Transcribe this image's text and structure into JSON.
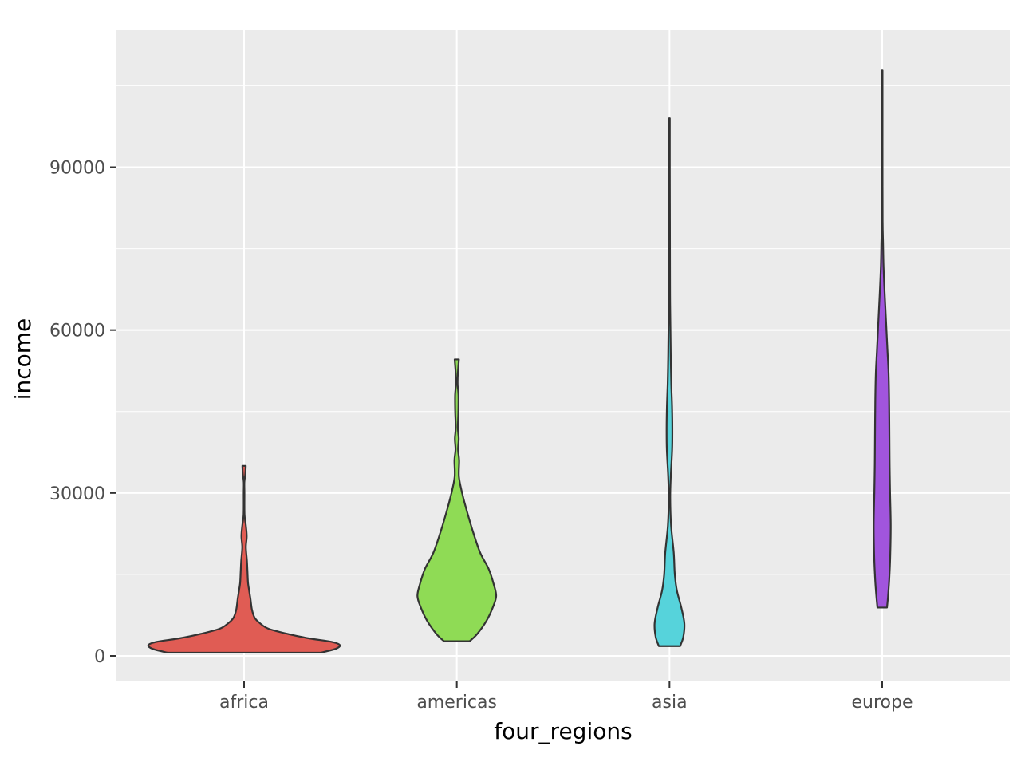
{
  "chart_data": {
    "type": "violin",
    "title": "",
    "xlabel": "four_regions",
    "ylabel": "income",
    "ylim": [
      -4700,
      115200
    ],
    "yticks": [
      0,
      30000,
      60000,
      90000
    ],
    "yticks_labels": [
      "0",
      "30000",
      "60000",
      "90000"
    ],
    "grid": true,
    "legend": "none",
    "categories": [
      "africa",
      "americas",
      "asia",
      "europe"
    ],
    "series": [
      {
        "category": "africa",
        "color": "#E05C54",
        "min": 600,
        "max": 35000,
        "profile": [
          [
            600,
            0.72
          ],
          [
            1300,
            0.86
          ],
          [
            2000,
            0.9
          ],
          [
            2600,
            0.82
          ],
          [
            3200,
            0.62
          ],
          [
            4000,
            0.42
          ],
          [
            5000,
            0.23
          ],
          [
            6000,
            0.15
          ],
          [
            7000,
            0.1
          ],
          [
            8500,
            0.074
          ],
          [
            10500,
            0.06
          ],
          [
            12000,
            0.048
          ],
          [
            13500,
            0.037
          ],
          [
            15500,
            0.032
          ],
          [
            17500,
            0.027
          ],
          [
            20000,
            0.017
          ],
          [
            22000,
            0.025
          ],
          [
            24000,
            0.017
          ],
          [
            26000,
            0.0045
          ],
          [
            30000,
            0.0035
          ],
          [
            32000,
            0.003
          ],
          [
            33500,
            0.012
          ],
          [
            35000,
            0.016
          ]
        ]
      },
      {
        "category": "americas",
        "color": "#8FDB55",
        "min": 2700,
        "max": 54600,
        "profile": [
          [
            2700,
            0.12
          ],
          [
            4000,
            0.19
          ],
          [
            6500,
            0.28
          ],
          [
            9000,
            0.34
          ],
          [
            11000,
            0.37
          ],
          [
            13000,
            0.35
          ],
          [
            16000,
            0.3
          ],
          [
            19000,
            0.22
          ],
          [
            23000,
            0.15
          ],
          [
            27000,
            0.09
          ],
          [
            30000,
            0.05
          ],
          [
            33000,
            0.02
          ],
          [
            36000,
            0.022
          ],
          [
            38000,
            0.012
          ],
          [
            40000,
            0.018
          ],
          [
            42000,
            0.01
          ],
          [
            45000,
            0.015
          ],
          [
            48000,
            0.016
          ],
          [
            50000,
            0.008
          ],
          [
            52000,
            0.01
          ],
          [
            54600,
            0.02
          ]
        ]
      },
      {
        "category": "asia",
        "color": "#56D3DB",
        "min": 1800,
        "max": 99000,
        "profile": [
          [
            1800,
            0.1
          ],
          [
            3500,
            0.13
          ],
          [
            6000,
            0.14
          ],
          [
            9000,
            0.11
          ],
          [
            12000,
            0.07
          ],
          [
            15000,
            0.05
          ],
          [
            19000,
            0.04
          ],
          [
            24000,
            0.015
          ],
          [
            29000,
            0.007
          ],
          [
            33000,
            0.012
          ],
          [
            38000,
            0.025
          ],
          [
            42000,
            0.027
          ],
          [
            46000,
            0.024
          ],
          [
            50000,
            0.017
          ],
          [
            55000,
            0.012
          ],
          [
            60000,
            0.009
          ],
          [
            65000,
            0.006
          ],
          [
            70000,
            0.005
          ],
          [
            80000,
            0.004
          ],
          [
            90000,
            0.003
          ],
          [
            99000,
            0.003
          ]
        ]
      },
      {
        "category": "europe",
        "color": "#A155DD",
        "min": 8900,
        "max": 107800,
        "profile": [
          [
            8900,
            0.045
          ],
          [
            11000,
            0.055
          ],
          [
            14000,
            0.066
          ],
          [
            18000,
            0.075
          ],
          [
            24000,
            0.08
          ],
          [
            30000,
            0.074
          ],
          [
            35000,
            0.07
          ],
          [
            40000,
            0.068
          ],
          [
            47000,
            0.065
          ],
          [
            52000,
            0.06
          ],
          [
            56000,
            0.05
          ],
          [
            60000,
            0.04
          ],
          [
            64000,
            0.03
          ],
          [
            68000,
            0.02
          ],
          [
            72000,
            0.012
          ],
          [
            76000,
            0.008
          ],
          [
            80000,
            0.004
          ],
          [
            90000,
            0.003
          ],
          [
            100000,
            0.003
          ],
          [
            107800,
            0.003
          ]
        ]
      }
    ]
  }
}
